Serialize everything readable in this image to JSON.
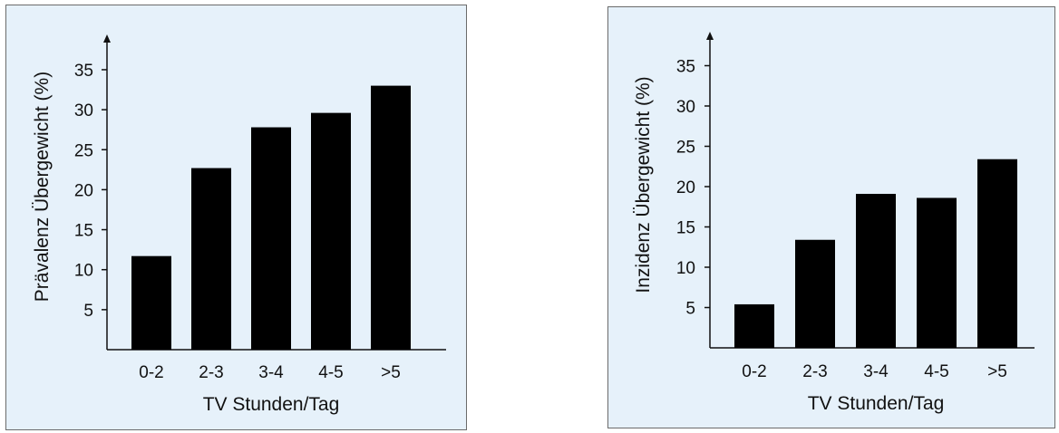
{
  "chart_data": [
    {
      "type": "bar",
      "categories": [
        "0-2",
        "2-3",
        "3-4",
        "4-5",
        ">5"
      ],
      "values": [
        11.7,
        22.7,
        27.8,
        29.6,
        33.0
      ],
      "xlabel": "TV Stunden/Tag",
      "ylabel": "Prävalenz Übergewicht (%)",
      "yticks": [
        5,
        10,
        15,
        20,
        25,
        30,
        35
      ],
      "ylim": [
        0,
        38
      ],
      "grid": false,
      "colors": {
        "bar": "#000000",
        "background": "#e6f1fa"
      }
    },
    {
      "type": "bar",
      "categories": [
        "0-2",
        "2-3",
        "3-4",
        "4-5",
        ">5"
      ],
      "values": [
        5.4,
        13.4,
        19.1,
        18.6,
        23.4
      ],
      "xlabel": "TV Stunden/Tag",
      "ylabel": "Inzidenz Übergewicht (%)",
      "yticks": [
        5,
        10,
        15,
        20,
        25,
        30,
        35
      ],
      "ylim": [
        0,
        38
      ],
      "grid": false,
      "colors": {
        "bar": "#000000",
        "background": "#e6f1fa"
      }
    }
  ]
}
